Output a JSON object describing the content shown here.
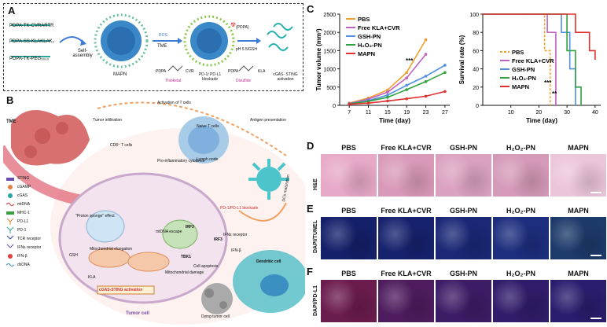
{
  "panels": {
    "a": "A",
    "b": "B",
    "c": "C",
    "d": "D",
    "e": "E",
    "f": "F"
  },
  "panel_a": {
    "polymers": [
      "PDPA-TK-CVRARTR",
      "PDPA-SS-KLAKLAK₂",
      "PDPA-TK-PEG₅₀₀₀"
    ],
    "self_assembly": "Self-assembly",
    "mapn": "MAPN",
    "ros": "ROS",
    "tme": "TME",
    "pdpa1": "PDPA",
    "thioketal": "Thioketal",
    "cvr": "CVR",
    "pd1_blockade": "PD-1/ PD-L1 blockade",
    "pdpa_top": "(PDPA)",
    "ph_gsh": "pH 5.5/GSH",
    "pdpa2": "PDPA",
    "disulfide": "Disulfide",
    "kla": "KLA",
    "cgas": "cGAS- STING activation"
  },
  "panel_b": {
    "tme": "TME",
    "tumor_infiltration": "Tumor infiltration",
    "activation": "Activation of T cells",
    "antigen": "Antigen presentation",
    "naive_t": "Naive T cells",
    "cd8": "CD8⁺ T cells",
    "cytokines": "Pro-inflammatory cytokines",
    "lymph": "Lymph node",
    "dcs_maturation": "DCs maturation",
    "pd1_block": "PD-1/PD-L1 blockade",
    "ifns_receptor": "IFNs receptor",
    "ifn_beta": "IFN-β",
    "dendritic": "Dendritic cell",
    "proton": "\"Proton sponge\" effect",
    "mtdna_escape": "mtDNA escape",
    "irf3a": "IRF3",
    "irf3b": "IRF3",
    "tbk1": "TBK1",
    "apoptosis": "Cell apoptosis",
    "gsh": "GSH",
    "mito_elong": "Mitochondrial elongation",
    "mito_damage": "Mitochondrial damage",
    "kla": "KLA",
    "cgas_sting": "cGAS-STING activation",
    "tumor_cell": "Tumor cell",
    "dying": "Dying tumor cell",
    "legend": [
      "STING",
      "cGAMP",
      "cGAS",
      "mtDNA",
      "MHC-1",
      "PD-L1",
      "PD-1",
      "TCR receptor",
      "IFNs receptor",
      "IFN-β",
      "dsDNA"
    ]
  },
  "chart_data": [
    {
      "type": "line",
      "title": "",
      "xlabel": "Time (day)",
      "ylabel": "Tumor volume (mm³)",
      "x": [
        7,
        11,
        15,
        19,
        23,
        27
      ],
      "ylim": [
        0,
        2500
      ],
      "yticks": [
        0,
        500,
        1000,
        1500,
        2000,
        2500
      ],
      "series": [
        {
          "name": "PBS",
          "color": "#f0a030",
          "values": [
            60,
            200,
            420,
            900,
            1800,
            null
          ]
        },
        {
          "name": "Free KLA+CVR",
          "color": "#c060c0",
          "values": [
            50,
            170,
            360,
            750,
            1400,
            null
          ]
        },
        {
          "name": "GSH-PN",
          "color": "#5090e0",
          "values": [
            45,
            130,
            280,
            550,
            800,
            1100
          ]
        },
        {
          "name": "H₂O₂-PN",
          "color": "#30a040",
          "values": [
            40,
            110,
            220,
            430,
            650,
            900
          ]
        },
        {
          "name": "MAPN",
          "color": "#e03030",
          "values": [
            30,
            60,
            120,
            180,
            250,
            380
          ]
        }
      ],
      "annotations": [
        "***"
      ]
    },
    {
      "type": "line",
      "title": "",
      "xlabel": "Time (day)",
      "ylabel": "Survival rate (%)",
      "x": [
        10,
        20,
        30,
        40
      ],
      "ylim": [
        0,
        100
      ],
      "yticks": [
        0,
        20,
        40,
        60,
        80,
        100
      ],
      "series": [
        {
          "name": "PBS",
          "color": "#f0a030",
          "values": [
            [
              0,
              100
            ],
            [
              22,
              100
            ],
            [
              22,
              60
            ],
            [
              24,
              60
            ],
            [
              24,
              0
            ]
          ]
        },
        {
          "name": "Free KLA+CVR",
          "color": "#c060c0",
          "values": [
            [
              0,
              100
            ],
            [
              23,
              100
            ],
            [
              23,
              80
            ],
            [
              26,
              80
            ],
            [
              26,
              0
            ]
          ]
        },
        {
          "name": "GSH-PN",
          "color": "#5090e0",
          "values": [
            [
              0,
              100
            ],
            [
              28,
              100
            ],
            [
              28,
              80
            ],
            [
              31,
              80
            ],
            [
              31,
              40
            ],
            [
              33,
              40
            ],
            [
              33,
              0
            ]
          ]
        },
        {
          "name": "H₂O₂-PN",
          "color": "#30a040",
          "values": [
            [
              0,
              100
            ],
            [
              30,
              100
            ],
            [
              30,
              60
            ],
            [
              33,
              60
            ],
            [
              33,
              20
            ],
            [
              35,
              20
            ],
            [
              35,
              0
            ]
          ]
        },
        {
          "name": "MAPN",
          "color": "#e03030",
          "values": [
            [
              0,
              100
            ],
            [
              33,
              100
            ],
            [
              33,
              80
            ],
            [
              38,
              80
            ],
            [
              38,
              60
            ],
            [
              40,
              60
            ],
            [
              40,
              50
            ]
          ]
        }
      ],
      "annotations": [
        "***",
        "**"
      ]
    }
  ],
  "micro": {
    "columns": [
      "PBS",
      "Free KLA+CVR",
      "GSH-PN",
      "H₂O₂-PN",
      "MAPN"
    ],
    "rows": [
      {
        "label": "H&E",
        "colors": [
          "#e7a9c8",
          "#d99ab9",
          "#dba2c0",
          "#d59ab8",
          "#ebc6da"
        ]
      },
      {
        "label": "DAPI/TUNEL",
        "colors": [
          "#14206a",
          "#16226e",
          "#1a2876",
          "#1d2e7e",
          "#1c3a6a"
        ]
      },
      {
        "label": "DAPI/PD-L1",
        "colors": [
          "#6b1c4e",
          "#4e1c5e",
          "#3d1c66",
          "#301c6a",
          "#2a1d6e"
        ]
      }
    ]
  }
}
